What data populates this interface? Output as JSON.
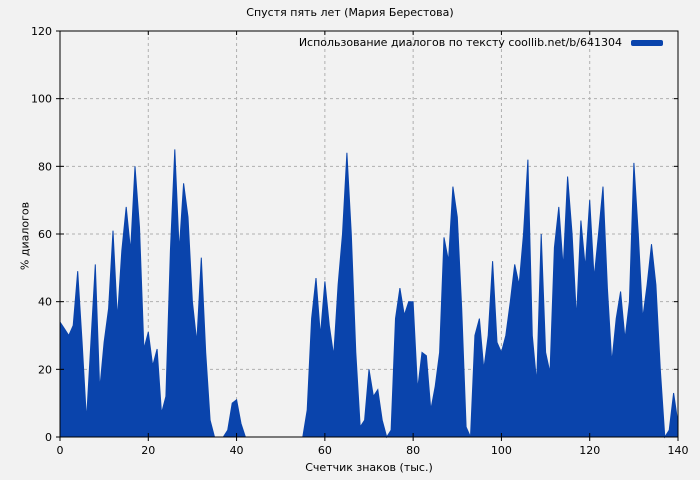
{
  "title": "Спустя пять лет (Мария Берестова)",
  "legend": {
    "label": "Использование диалогов по тексту coollib.net/b/641304",
    "swatch_color": "#0a44ac",
    "position": "top-right"
  },
  "colors": {
    "background": "#f2f2f2",
    "plot_border": "#000000",
    "grid": "#b0b0b0",
    "series_fill": "#0a44ac",
    "text": "#000000"
  },
  "chart_data": {
    "type": "area",
    "title": "Спустя пять лет (Мария Берестова)",
    "xlabel": "Счетчик знаков (тыс.)",
    "ylabel": "% диалогов",
    "xlim": [
      0,
      140
    ],
    "ylim": [
      0,
      120
    ],
    "x_ticks": [
      0,
      20,
      40,
      60,
      80,
      100,
      120,
      140
    ],
    "y_ticks": [
      0,
      20,
      40,
      60,
      80,
      100,
      120
    ],
    "grid": true,
    "legend_position": "top-right",
    "series": [
      {
        "name": "Использование диалогов по тексту coollib.net/b/641304",
        "color": "#0a44ac",
        "x": [
          0,
          1,
          2,
          3,
          4,
          5,
          6,
          7,
          8,
          9,
          10,
          11,
          12,
          13,
          14,
          15,
          16,
          17,
          18,
          19,
          20,
          21,
          22,
          23,
          24,
          25,
          26,
          27,
          28,
          29,
          30,
          31,
          32,
          33,
          34,
          35,
          36,
          37,
          38,
          39,
          40,
          41,
          42,
          43,
          44,
          45,
          46,
          47,
          48,
          49,
          50,
          51,
          52,
          53,
          54,
          55,
          56,
          57,
          58,
          59,
          60,
          61,
          62,
          63,
          64,
          65,
          66,
          67,
          68,
          69,
          70,
          71,
          72,
          73,
          74,
          75,
          76,
          77,
          78,
          79,
          80,
          81,
          82,
          83,
          84,
          85,
          86,
          87,
          88,
          89,
          90,
          91,
          92,
          93,
          94,
          95,
          96,
          97,
          98,
          99,
          100,
          101,
          102,
          103,
          104,
          105,
          106,
          107,
          108,
          109,
          110,
          111,
          112,
          113,
          114,
          115,
          116,
          117,
          118,
          119,
          120,
          121,
          122,
          123,
          124,
          125,
          126,
          127,
          128,
          129,
          130,
          131,
          132,
          133,
          134,
          135,
          136,
          137,
          138,
          139,
          140
        ],
        "values": [
          34,
          32,
          30,
          33,
          49,
          28,
          5,
          28,
          51,
          14,
          28,
          38,
          61,
          35,
          55,
          68,
          55,
          80,
          62,
          26,
          31,
          21,
          26,
          7,
          12,
          55,
          85,
          55,
          75,
          65,
          40,
          28,
          53,
          25,
          5,
          0,
          0,
          0,
          2,
          10,
          11,
          4,
          0,
          0,
          0,
          0,
          0,
          0,
          0,
          0,
          0,
          0,
          0,
          0,
          0,
          0,
          8,
          35,
          47,
          30,
          46,
          33,
          24,
          45,
          60,
          84,
          60,
          25,
          3,
          5,
          20,
          12,
          14,
          5,
          0,
          2,
          35,
          44,
          36,
          40,
          40,
          14,
          25,
          24,
          8,
          15,
          25,
          59,
          52,
          74,
          65,
          38,
          3,
          0,
          30,
          35,
          20,
          30,
          52,
          28,
          25,
          30,
          40,
          51,
          45,
          60,
          82,
          30,
          16,
          60,
          25,
          19,
          56,
          68,
          50,
          77,
          60,
          35,
          64,
          50,
          70,
          47,
          60,
          74,
          44,
          22,
          35,
          43,
          29,
          40,
          81,
          60,
          35,
          45,
          57,
          45,
          20,
          0,
          2,
          13,
          4
        ]
      }
    ]
  }
}
